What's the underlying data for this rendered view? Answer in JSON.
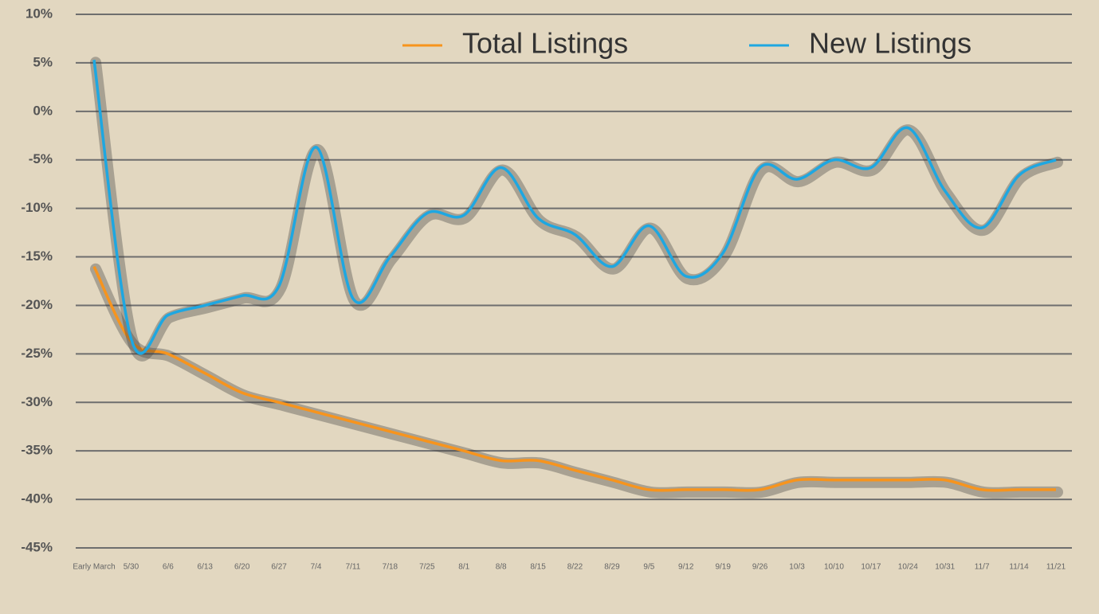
{
  "chart_data": {
    "type": "line",
    "categories": [
      "Early March",
      "5/30",
      "6/6",
      "6/13",
      "6/20",
      "6/27",
      "7/4",
      "7/11",
      "7/18",
      "7/25",
      "8/1",
      "8/8",
      "8/15",
      "8/22",
      "8/29",
      "9/5",
      "9/12",
      "9/19",
      "9/26",
      "10/3",
      "10/10",
      "10/17",
      "10/24",
      "10/31",
      "11/7",
      "11/14",
      "11/21"
    ],
    "series": [
      {
        "name": "Total Listings",
        "color": "#f7941d",
        "values": [
          -16,
          -23.7,
          -25,
          -27,
          -29,
          -30,
          -31,
          -32,
          -33,
          -34,
          -35,
          -36,
          -36,
          -37,
          -38,
          -39,
          -39,
          -39,
          -39,
          -38,
          -38,
          -38,
          -38,
          -38,
          -39,
          -39,
          -39
        ]
      },
      {
        "name": "New Listings",
        "color": "#1ea7e1",
        "values": [
          5.3,
          -23.4,
          -21,
          -20,
          -19,
          -18,
          -3.7,
          -19.3,
          -15,
          -10.5,
          -10.7,
          -5.8,
          -11,
          -12.7,
          -16,
          -11.8,
          -17,
          -14.6,
          -5.8,
          -7,
          -5,
          -5.8,
          -1.7,
          -8.2,
          -12,
          -6.6,
          -5
        ]
      }
    ],
    "ylim": [
      -45,
      10
    ],
    "yticks": [
      {
        "value": -45,
        "label": "-45%"
      },
      {
        "value": -40,
        "label": "-40%"
      },
      {
        "value": -35,
        "label": "-35%"
      },
      {
        "value": -30,
        "label": "-30%"
      },
      {
        "value": -25,
        "label": "-25%"
      },
      {
        "value": -20,
        "label": "-20%"
      },
      {
        "value": -15,
        "label": "-15%"
      },
      {
        "value": -10,
        "label": "-10%"
      },
      {
        "value": -5,
        "label": "-5%"
      },
      {
        "value": 0,
        "label": "0%"
      },
      {
        "value": 5,
        "label": "5%"
      },
      {
        "value": 10,
        "label": "10%"
      }
    ],
    "grid": true,
    "legend": "top"
  }
}
